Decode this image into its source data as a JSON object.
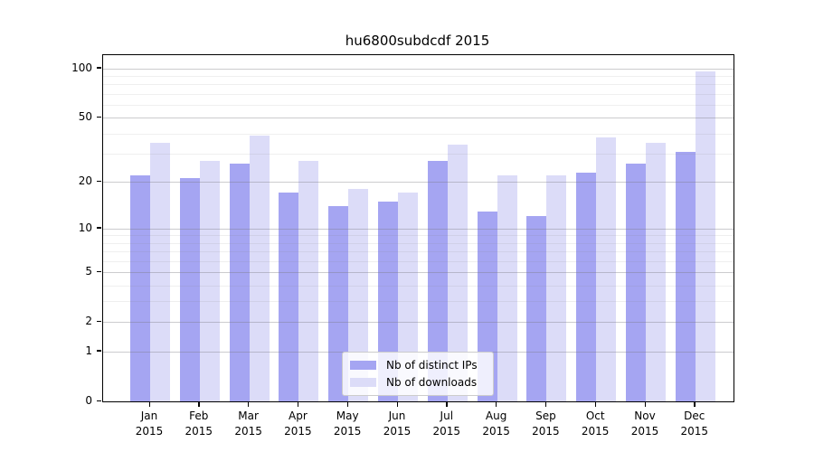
{
  "title": "hu6800subdcdf 2015",
  "chart_data": {
    "type": "bar",
    "title": "hu6800subdcdf 2015",
    "categories": [
      "Jan",
      "Feb",
      "Mar",
      "Apr",
      "May",
      "Jun",
      "Jul",
      "Aug",
      "Sep",
      "Oct",
      "Nov",
      "Dec"
    ],
    "x_tick_second_line": "2015",
    "series": [
      {
        "name": "Nb of distinct IPs",
        "color": "#a5a5f2",
        "values": [
          22,
          21,
          26,
          17,
          14,
          15,
          27,
          13,
          12,
          23,
          26,
          31
        ]
      },
      {
        "name": "Nb of downloads",
        "color": "#dcdcf8",
        "values": [
          35,
          27,
          39,
          27,
          18,
          17,
          34,
          22,
          22,
          38,
          35,
          96
        ]
      }
    ],
    "y_axis": {
      "scale": "log10(1+x)",
      "ticks": [
        100,
        50,
        20,
        10,
        5,
        2,
        1,
        0
      ],
      "minor_ticks": [
        3,
        4,
        6,
        7,
        8,
        9,
        30,
        40,
        60,
        70,
        80,
        90
      ],
      "max_transformed": 2.0854
    },
    "xlabel": "",
    "ylabel": "",
    "grid": true,
    "legend": {
      "position": "lower center",
      "entries": [
        "Nb of distinct IPs",
        "Nb of downloads"
      ]
    },
    "colors": {
      "distinct_ips": "#a5a5f2",
      "downloads": "#dcdcf8",
      "grid_major": "rgba(120,120,125,0.38)",
      "grid_minor": "rgba(120,120,125,0.12)",
      "spine": "#000000"
    }
  }
}
